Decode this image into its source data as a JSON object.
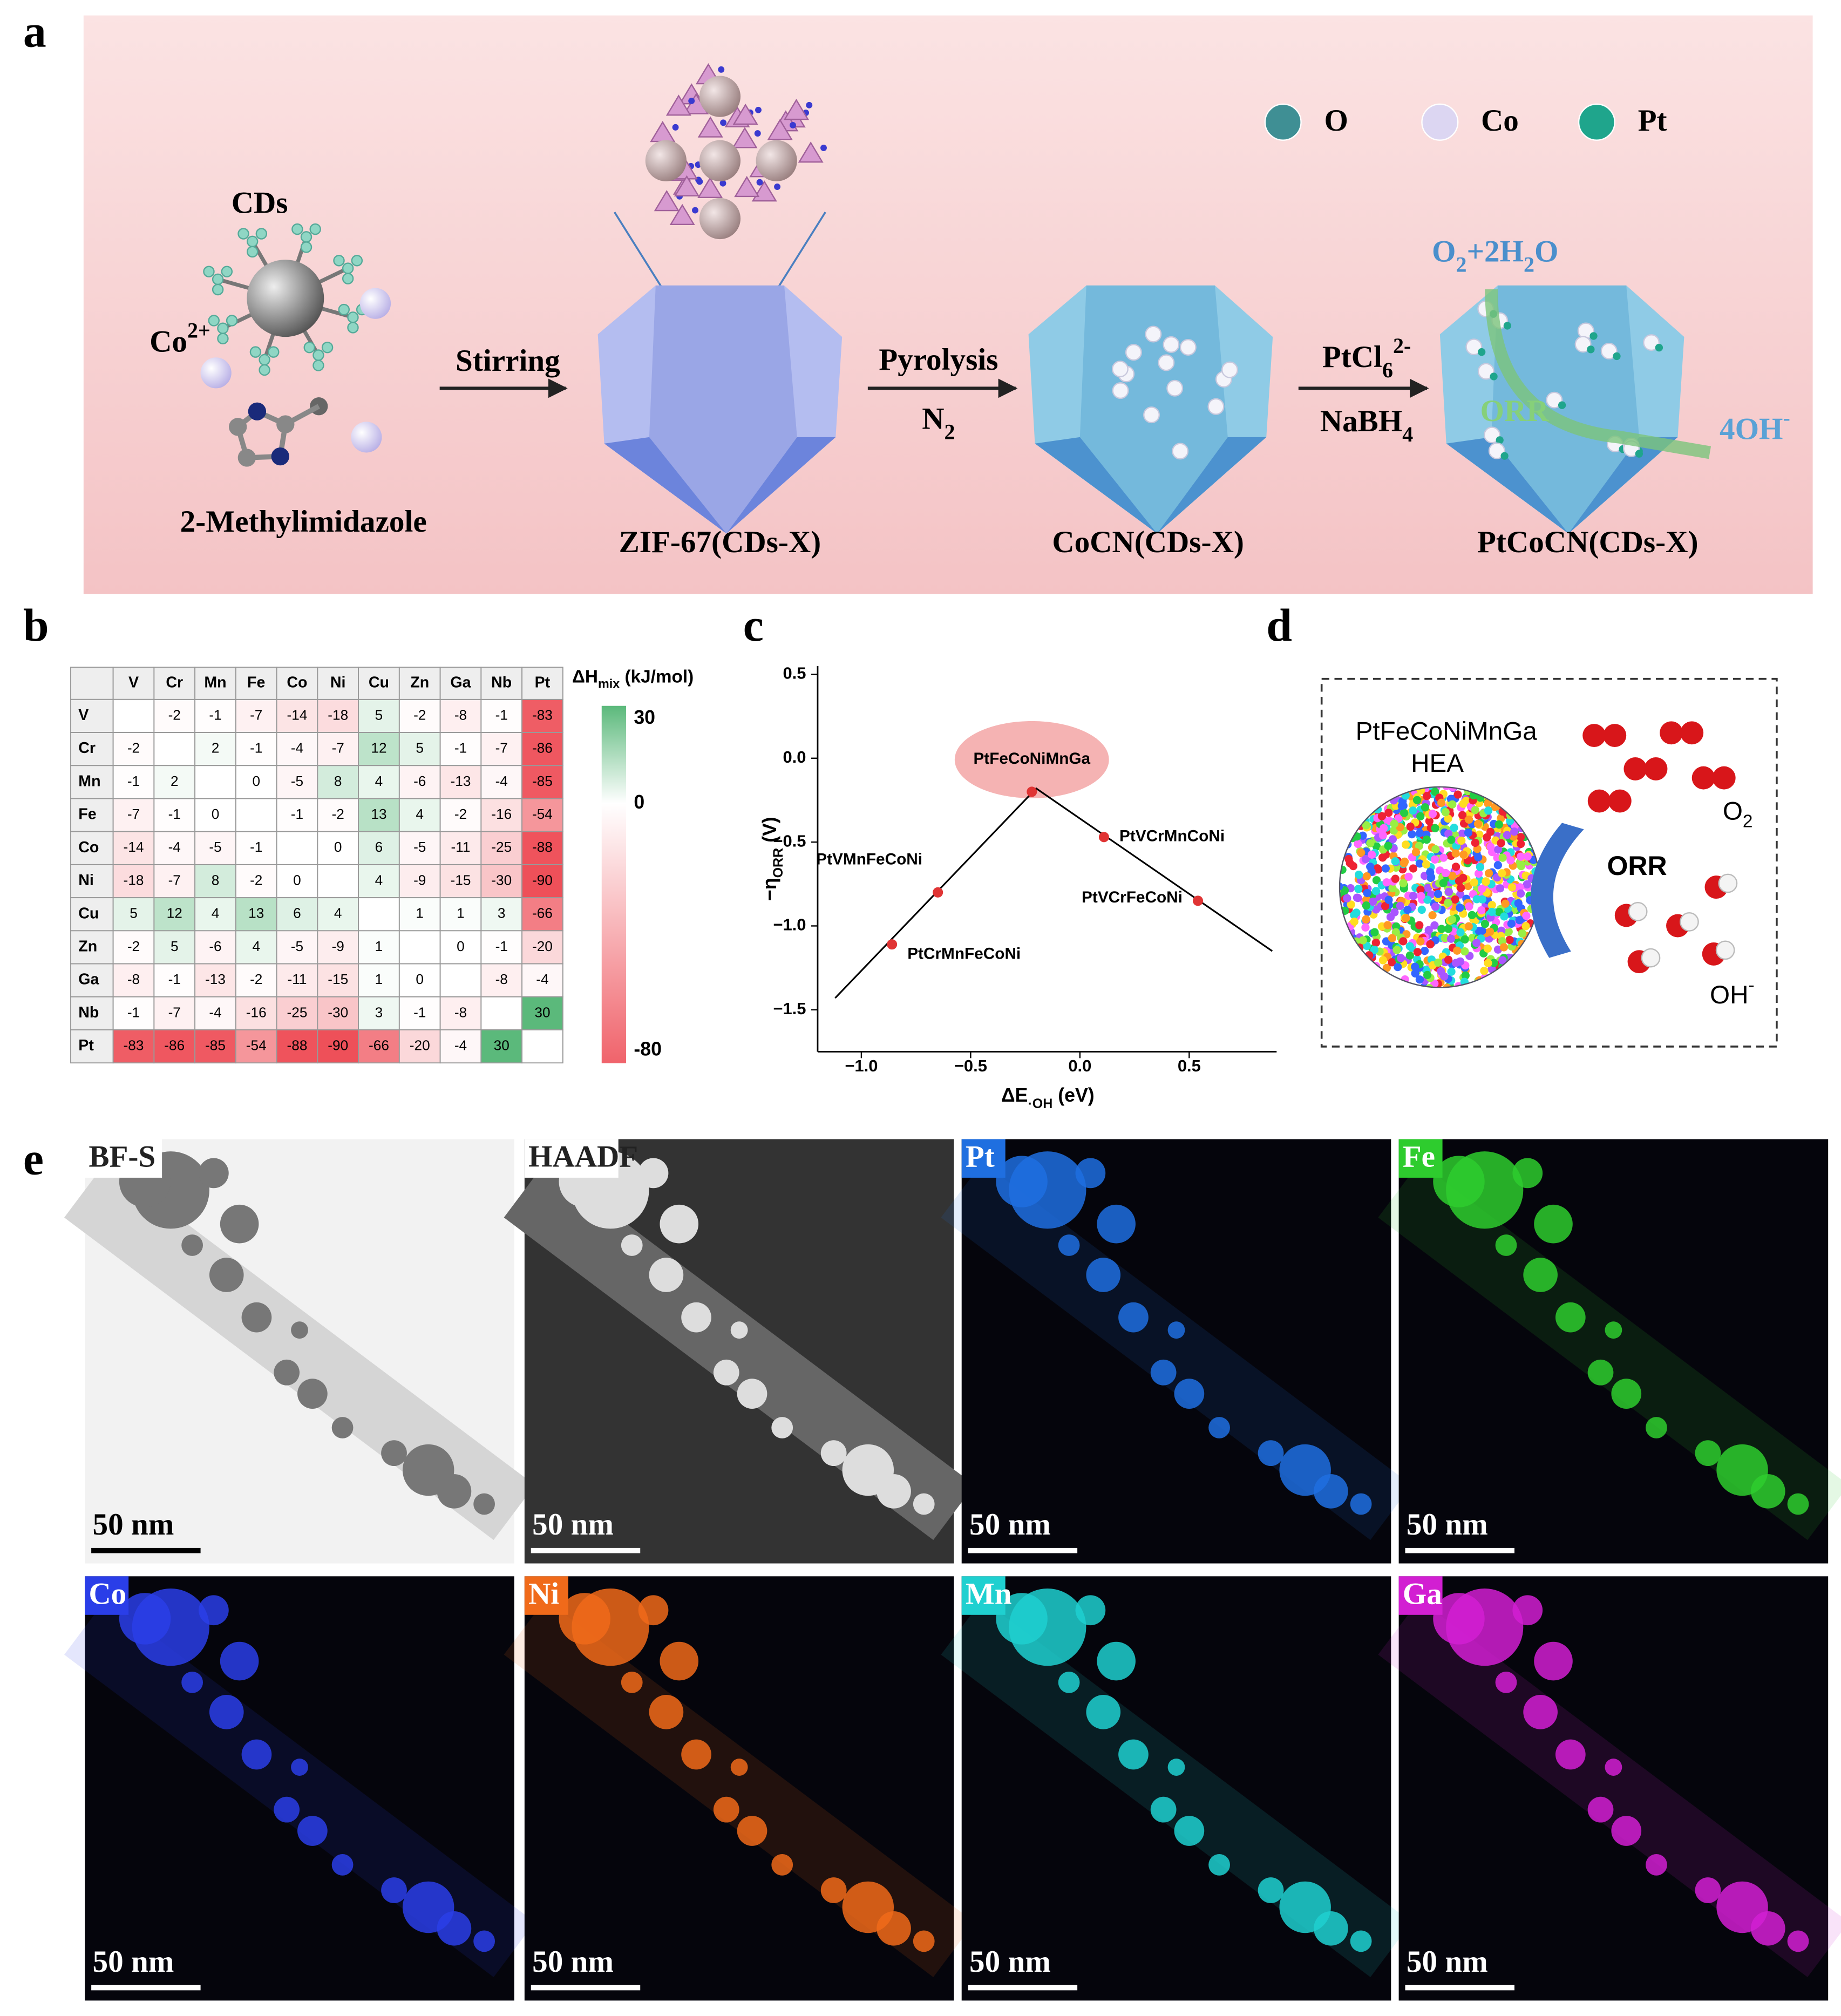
{
  "panel_labels": [
    "a",
    "b",
    "c",
    "d",
    "e"
  ],
  "panel_a": {
    "cds": "CDs",
    "co_ion": [
      {
        "t": "Co"
      },
      {
        "sup": "2+"
      }
    ],
    "linker": "2-Methylimidazole",
    "step1": "Stirring",
    "zif": "ZIF-67(CDs-X)",
    "step2_top": "Pyrolysis",
    "step2_bottom": [
      {
        "t": "N"
      },
      {
        "sub": "2"
      }
    ],
    "cocn": "CoCN(CDs-X)",
    "step3_top": [
      {
        "t": "PtCl"
      },
      {
        "sub": "6"
      },
      {
        "sup": "2-"
      }
    ],
    "step3_bottom": [
      {
        "t": "NaBH"
      },
      {
        "sub": "4"
      }
    ],
    "ptcocn": "PtCoCN(CDs-X)",
    "reactant": [
      {
        "t": "O"
      },
      {
        "sub": "2"
      },
      {
        "t": "+2H"
      },
      {
        "sub": "2"
      },
      {
        "t": "O"
      }
    ],
    "orr": "ORR",
    "product": [
      {
        "t": "4OH"
      },
      {
        "sup": "-"
      }
    ],
    "legend": [
      {
        "label": "O",
        "color": "#3f8f94"
      },
      {
        "label": "Co",
        "color": "#dcd6f2"
      },
      {
        "label": "Pt",
        "color": "#1fa58c"
      }
    ]
  },
  "chart_data": [
    {
      "type": "heatmap",
      "elements": [
        "V",
        "Cr",
        "Mn",
        "Fe",
        "Co",
        "Ni",
        "Cu",
        "Zn",
        "Ga",
        "Nb",
        "Pt"
      ],
      "values": [
        [
          null,
          -2,
          -1,
          -7,
          -14,
          -18,
          5,
          -2,
          -8,
          -1,
          -83
        ],
        [
          -2,
          null,
          2,
          -1,
          -4,
          -7,
          12,
          5,
          -1,
          -7,
          -86
        ],
        [
          -1,
          2,
          null,
          0,
          -5,
          8,
          4,
          -6,
          -13,
          -4,
          -85
        ],
        [
          -7,
          -1,
          0,
          null,
          -1,
          -2,
          13,
          4,
          -2,
          -16,
          -54
        ],
        [
          -14,
          -4,
          -5,
          -1,
          null,
          0,
          6,
          -5,
          -11,
          -25,
          -88
        ],
        [
          -18,
          -7,
          8,
          -2,
          0,
          null,
          4,
          -9,
          -15,
          -30,
          -90
        ],
        [
          5,
          12,
          4,
          13,
          6,
          4,
          null,
          1,
          1,
          3,
          -66
        ],
        [
          -2,
          5,
          -6,
          4,
          -5,
          -9,
          1,
          null,
          0,
          -1,
          -20
        ],
        [
          -8,
          -1,
          -13,
          -2,
          -11,
          -15,
          1,
          0,
          null,
          -8,
          -4
        ],
        [
          -1,
          -7,
          -4,
          -16,
          -25,
          -30,
          3,
          -1,
          -8,
          null,
          30
        ],
        [
          -83,
          -86,
          -85,
          -54,
          -88,
          -90,
          -66,
          -20,
          -4,
          30,
          null
        ]
      ],
      "colorbar": {
        "title": [
          {
            "t": "ΔH"
          },
          {
            "sub": "mix"
          },
          {
            "t": " (kJ/mol)"
          }
        ],
        "lim": [
          -80,
          30
        ],
        "ticks": [
          30,
          0,
          -80
        ],
        "low": "#f0636b",
        "mid": "#ffffff",
        "high": "#5bb97b"
      }
    },
    {
      "type": "scatter",
      "x": [
        -0.22,
        0.11,
        0.54,
        -0.65,
        -0.86
      ],
      "y": [
        -0.2,
        -0.47,
        -0.85,
        -0.8,
        -1.11
      ],
      "labels": [
        "PtFeCoNiMnGa",
        "PtVCrMnCoNi",
        "PtVCrFeCoNi",
        "PtVMnFeCoNi",
        "PtCrMnFeCoNi"
      ],
      "color": "#e03434",
      "fit": {
        "x": [
          -1.12,
          -0.2,
          0.88
        ],
        "y": [
          -1.43,
          -0.18,
          -1.15
        ]
      },
      "xlabel": [
        {
          "t": "ΔE"
        },
        {
          "sub": "·OH"
        },
        {
          "t": " (eV)"
        }
      ],
      "ylabel": [
        {
          "t": "−η"
        },
        {
          "sub": "ORR"
        },
        {
          "t": " (V)"
        }
      ],
      "xlim": [
        -1.2,
        0.9
      ],
      "ylim": [
        -1.75,
        0.55
      ],
      "xticks": [
        {
          "value": -1,
          "label": "−1.0"
        },
        {
          "value": -0.5,
          "label": "−0.5"
        },
        {
          "value": 0,
          "label": "0.0"
        },
        0.5
      ],
      "yticks": [
        0.5,
        {
          "value": 0,
          "label": "0.0"
        },
        {
          "value": -0.5,
          "label": "−0.5"
        },
        {
          "value": -1,
          "label": "−1.0"
        },
        {
          "value": -1.5,
          "label": "−1.5"
        }
      ]
    }
  ],
  "panel_d": {
    "material": "PtFeCoNiMnGa",
    "material_sub": "HEA",
    "process": "ORR",
    "reactant": [
      {
        "t": "O"
      },
      {
        "sub": "2"
      }
    ],
    "product": [
      {
        "t": "OH"
      },
      {
        "sup": "-"
      }
    ]
  },
  "panel_e": {
    "tiles": [
      {
        "label": "BF-S",
        "scale_bar": "50 nm",
        "color": "#777777"
      },
      {
        "label": "HAADF",
        "scale_bar": "50 nm",
        "color": "#dddddd"
      },
      {
        "label": "Pt",
        "scale_bar": "50 nm",
        "color": "#1f6fe0"
      },
      {
        "label": "Fe",
        "scale_bar": "50 nm",
        "color": "#2ecc2e"
      },
      {
        "label": "Co",
        "scale_bar": "50 nm",
        "color": "#2a3ee8"
      },
      {
        "label": "Ni",
        "scale_bar": "50 nm",
        "color": "#f06a1a"
      },
      {
        "label": "Mn",
        "scale_bar": "50 nm",
        "color": "#1fd0d0"
      },
      {
        "label": "Ga",
        "scale_bar": "50 nm",
        "color": "#d21fd2"
      }
    ]
  }
}
